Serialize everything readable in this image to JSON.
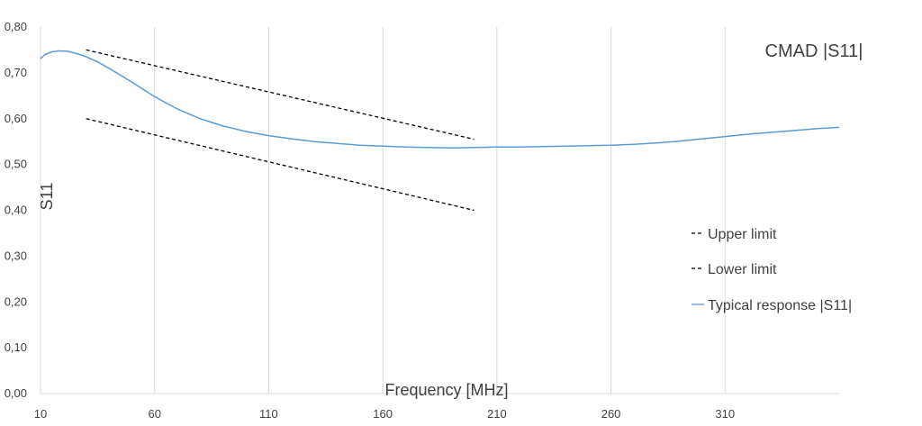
{
  "chart_data": {
    "type": "line",
    "title": "CMAD |S11|",
    "xlabel": "Frequency [MHz]",
    "ylabel": "S11",
    "xlim": [
      10,
      360
    ],
    "ylim": [
      0,
      0.8
    ],
    "x_ticks": [
      10,
      60,
      110,
      160,
      210,
      260,
      310
    ],
    "x_tick_labels": [
      "10",
      "60",
      "110",
      "160",
      "210",
      "260",
      "310"
    ],
    "y_ticks": [
      0,
      0.1,
      0.2,
      0.3,
      0.4,
      0.5,
      0.6,
      0.7,
      0.8
    ],
    "y_tick_labels": [
      "0,00",
      "0,10",
      "0,20",
      "0,30",
      "0,40",
      "0,50",
      "0,60",
      "0,70",
      "0,80"
    ],
    "grid": "vertical",
    "legend_position": "right",
    "colors": {
      "limits": "#000000",
      "typical": "#5b9bd5",
      "grid": "#d9d9d9"
    },
    "series": [
      {
        "name": "Upper limit",
        "style": "dashed",
        "x": [
          30,
          200
        ],
        "y": [
          0.75,
          0.555
        ]
      },
      {
        "name": "Lower limit",
        "style": "dashed",
        "x": [
          30,
          200
        ],
        "y": [
          0.6,
          0.4
        ]
      },
      {
        "name": "Typical response |S11|",
        "style": "solid",
        "x": [
          10,
          12,
          15,
          18,
          22,
          26,
          30,
          35,
          40,
          45,
          50,
          55,
          60,
          70,
          80,
          90,
          100,
          110,
          120,
          130,
          140,
          150,
          160,
          170,
          180,
          190,
          200,
          210,
          220,
          230,
          240,
          250,
          260,
          270,
          280,
          290,
          300,
          310,
          320,
          330,
          340,
          350,
          360
        ],
        "y": [
          0.731,
          0.74,
          0.746,
          0.748,
          0.747,
          0.742,
          0.735,
          0.724,
          0.71,
          0.695,
          0.68,
          0.664,
          0.648,
          0.621,
          0.6,
          0.584,
          0.572,
          0.563,
          0.556,
          0.55,
          0.546,
          0.542,
          0.54,
          0.538,
          0.537,
          0.536,
          0.537,
          0.538,
          0.538,
          0.539,
          0.54,
          0.541,
          0.542,
          0.544,
          0.547,
          0.551,
          0.556,
          0.561,
          0.566,
          0.57,
          0.574,
          0.578,
          0.581
        ]
      }
    ]
  }
}
